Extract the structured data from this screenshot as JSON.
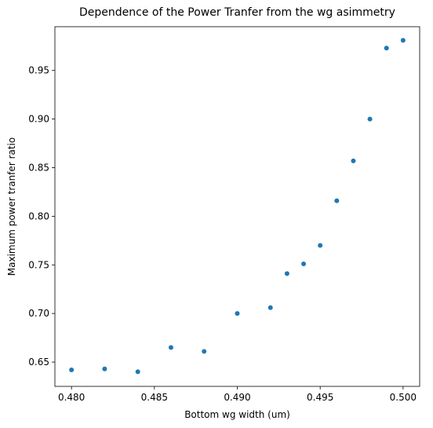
{
  "chart_data": {
    "type": "scatter",
    "title": "Dependence of the Power Tranfer from the wg asimmetry",
    "xlabel": "Bottom wg width (um)",
    "ylabel": "Maximum power tranfer ratio",
    "xlim": [
      0.479,
      0.501
    ],
    "ylim": [
      0.625,
      0.995
    ],
    "xticks": [
      0.48,
      0.485,
      0.49,
      0.495,
      0.5
    ],
    "xtick_labels": [
      "0.480",
      "0.485",
      "0.490",
      "0.495",
      "0.500"
    ],
    "yticks": [
      0.65,
      0.7,
      0.75,
      0.8,
      0.85,
      0.9,
      0.95
    ],
    "ytick_labels": [
      "0.65",
      "0.70",
      "0.75",
      "0.80",
      "0.85",
      "0.90",
      "0.95"
    ],
    "grid": false,
    "marker_color": "#1f77b4",
    "x": [
      0.48,
      0.482,
      0.484,
      0.486,
      0.488,
      0.49,
      0.492,
      0.493,
      0.494,
      0.495,
      0.496,
      0.497,
      0.498,
      0.499,
      0.5
    ],
    "y": [
      0.642,
      0.643,
      0.64,
      0.665,
      0.661,
      0.7,
      0.706,
      0.741,
      0.751,
      0.77,
      0.816,
      0.857,
      0.9,
      0.973,
      0.981
    ]
  }
}
